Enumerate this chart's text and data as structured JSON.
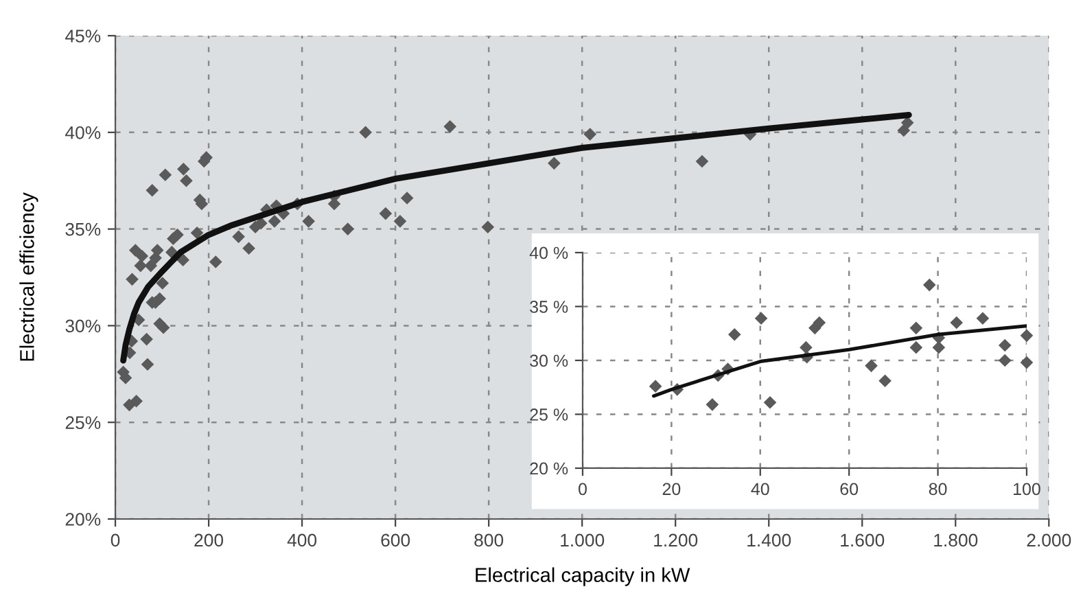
{
  "chart_data": [
    {
      "type": "scatter",
      "xlabel": "Electrical capacity in kW",
      "ylabel": "Electrical efficiency",
      "xlim": [
        0,
        2000
      ],
      "ylim": [
        20,
        45
      ],
      "xticks": [
        0,
        200,
        400,
        600,
        800,
        {
          "value": 1000,
          "label": "1.000"
        },
        {
          "value": 1200,
          "label": "1.200"
        },
        {
          "value": 1400,
          "label": "1.400"
        },
        {
          "value": 1600,
          "label": "1.600"
        },
        {
          "value": 1800,
          "label": "1.800"
        },
        {
          "value": 2000,
          "label": "2.000"
        }
      ],
      "yticks": [
        {
          "value": 20,
          "label": "20%"
        },
        {
          "value": 25,
          "label": "25%"
        },
        {
          "value": 30,
          "label": "30%"
        },
        {
          "value": 35,
          "label": "35%"
        },
        {
          "value": 40,
          "label": "40%"
        },
        {
          "value": 45,
          "label": "45%"
        }
      ],
      "grid": true,
      "marker": "diamond",
      "series": [
        {
          "color": "#5a5a5a",
          "x": [
            17,
            22,
            30,
            45,
            31,
            35,
            36,
            43,
            54,
            57,
            50,
            67,
            69,
            76,
            79,
            86,
            90,
            79,
            86,
            95,
            95,
            103,
            101,
            107,
            121,
            124,
            133,
            145,
            146,
            152,
            175,
            181,
            185,
            190,
            195,
            215,
            264,
            286,
            300,
            312,
            324,
            341,
            345,
            360,
            390,
            414,
            469,
            469,
            498,
            536,
            579,
            610,
            625,
            717,
            798,
            940,
            1017,
            1257,
            1360,
            1689,
            1697
          ],
          "values": [
            27.6,
            27.3,
            25.9,
            26.1,
            28.6,
            29.2,
            32.4,
            33.9,
            33.1,
            33.6,
            30.3,
            29.3,
            28.0,
            33.1,
            37.0,
            33.5,
            33.9,
            31.2,
            31.2,
            31.4,
            30.1,
            29.9,
            32.2,
            37.8,
            33.8,
            34.5,
            34.7,
            33.4,
            38.1,
            37.5,
            34.8,
            36.5,
            36.3,
            38.5,
            38.7,
            33.3,
            34.6,
            34.0,
            35.1,
            35.3,
            36.0,
            35.4,
            36.2,
            35.8,
            36.3,
            35.4,
            36.3,
            36.7,
            35.0,
            40.0,
            35.8,
            35.4,
            36.6,
            40.3,
            35.1,
            38.4,
            39.9,
            38.5,
            39.9,
            40.1,
            40.5
          ]
        },
        {
          "type": "line",
          "color": "#111111",
          "marker": "none",
          "x": [
            17,
            22,
            30,
            40,
            50,
            70,
            100,
            140,
            200,
            250,
            300,
            400,
            500,
            600,
            800,
            1000,
            1200,
            1400,
            1700
          ],
          "values": [
            28.2,
            29.0,
            29.8,
            30.6,
            31.2,
            32.0,
            32.8,
            33.8,
            34.7,
            35.2,
            35.6,
            36.4,
            37.0,
            37.6,
            38.4,
            39.2,
            39.7,
            40.2,
            40.9
          ]
        }
      ]
    },
    {
      "type": "scatter",
      "xlim": [
        0,
        100
      ],
      "ylim": [
        20,
        40
      ],
      "xticks": [
        0,
        20,
        40,
        60,
        80,
        100
      ],
      "yticks": [
        {
          "value": 20,
          "label": "20 %"
        },
        {
          "value": 25,
          "label": "25 %"
        },
        {
          "value": 30,
          "label": "30 %"
        },
        {
          "value": 35,
          "label": "35 %"
        },
        {
          "value": 40,
          "label": "40 %"
        }
      ],
      "grid": true,
      "marker": "diamond",
      "series": [
        {
          "color": "#5a5a5a",
          "x": [
            16.4,
            21.3,
            29.2,
            30.5,
            32.7,
            34.2,
            40.2,
            42.2,
            50.3,
            50.5,
            52.3,
            53.3,
            65.0,
            68.1,
            75.1,
            75.1,
            78.1,
            80.2,
            80.2,
            84.2,
            90.1,
            95.1,
            95.1,
            100,
            100
          ],
          "values": [
            27.6,
            27.3,
            25.9,
            28.6,
            29.2,
            32.4,
            33.9,
            26.1,
            31.2,
            30.3,
            33.0,
            33.5,
            29.5,
            28.1,
            33.0,
            31.2,
            37.0,
            32.1,
            31.2,
            33.5,
            33.9,
            31.4,
            30.0,
            32.3,
            29.8
          ]
        },
        {
          "type": "line",
          "color": "#111111",
          "marker": "none",
          "x": [
            16,
            20,
            30,
            40,
            60,
            80,
            100
          ],
          "values": [
            26.7,
            27.3,
            28.6,
            29.9,
            31.0,
            32.4,
            33.2
          ]
        }
      ]
    }
  ]
}
